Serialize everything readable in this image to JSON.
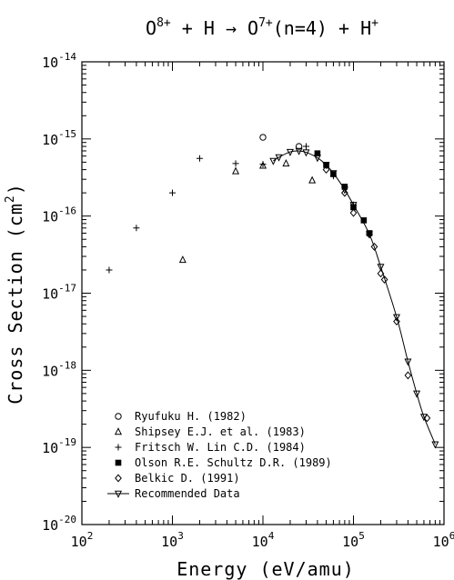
{
  "chart_data": {
    "type": "scatter",
    "title_parts": {
      "a": "O",
      "a_sup": "8+",
      "b": " + H → O",
      "b_sup": "7+",
      "c": "(n=4) + H",
      "c_sup": "+"
    },
    "xlabel": "Energy (eV/amu)",
    "ylabel_parts": {
      "main": "Cross Section (cm",
      "sup": "2",
      "end": ")"
    },
    "x_scale": "log",
    "y_scale": "log",
    "xlim": [
      100,
      1000000
    ],
    "ylim": [
      1e-20,
      1e-14
    ],
    "x_ticks": [
      {
        "value": 100,
        "base": "10",
        "exp": "2"
      },
      {
        "value": 1000,
        "base": "10",
        "exp": "3"
      },
      {
        "value": 10000,
        "base": "10",
        "exp": "4"
      },
      {
        "value": 100000,
        "base": "10",
        "exp": "5"
      },
      {
        "value": 1000000,
        "base": "10",
        "exp": "6"
      }
    ],
    "y_ticks": [
      {
        "value": 1e-20,
        "base": "10",
        "exp": "-20"
      },
      {
        "value": 1e-19,
        "base": "10",
        "exp": "-19"
      },
      {
        "value": 1e-18,
        "base": "10",
        "exp": "-18"
      },
      {
        "value": 1e-17,
        "base": "10",
        "exp": "-17"
      },
      {
        "value": 1e-16,
        "base": "10",
        "exp": "-16"
      },
      {
        "value": 1e-15,
        "base": "10",
        "exp": "-15"
      },
      {
        "value": 1e-14,
        "base": "10",
        "exp": "-14"
      }
    ],
    "legend_position": "lower-left",
    "series": [
      {
        "name": "Ryufuku H. (1982)",
        "marker": "circle",
        "points": [
          [
            10000,
            1.05e-15
          ],
          [
            25000,
            8e-16
          ]
        ]
      },
      {
        "name": "Shipsey E.J. et al. (1983)",
        "marker": "triangle",
        "points": [
          [
            1300,
            2.7e-17
          ],
          [
            5000,
            3.8e-16
          ],
          [
            10000,
            4.5e-16
          ],
          [
            18000,
            4.8e-16
          ],
          [
            35000,
            2.9e-16
          ]
        ]
      },
      {
        "name": "Fritsch W. Lin C.D. (1984)",
        "marker": "plus",
        "points": [
          [
            200,
            2e-17
          ],
          [
            400,
            7e-17
          ],
          [
            1000,
            2e-16
          ],
          [
            2000,
            5.6e-16
          ],
          [
            5000,
            4.8e-16
          ],
          [
            10000,
            4.7e-16
          ],
          [
            30000,
            8e-16
          ],
          [
            60000,
            3.3e-16
          ],
          [
            100000,
            1.4e-16
          ]
        ]
      },
      {
        "name": "Olson R.E. Schultz D.R. (1989)",
        "marker": "filled-square",
        "points": [
          [
            40000,
            6.5e-16
          ],
          [
            50000,
            4.6e-16
          ],
          [
            60000,
            3.5e-16
          ],
          [
            80000,
            2.4e-16
          ],
          [
            100000,
            1.3e-16
          ],
          [
            130000,
            8.8e-17
          ],
          [
            150000,
            6e-17
          ]
        ]
      },
      {
        "name": "Belkic D. (1991)",
        "marker": "diamond",
        "points": [
          [
            50000,
            4e-16
          ],
          [
            80000,
            2e-16
          ],
          [
            100000,
            1.1e-16
          ],
          [
            150000,
            5.8e-17
          ],
          [
            170000,
            4e-17
          ],
          [
            200000,
            1.8e-17
          ],
          [
            220000,
            1.5e-17
          ],
          [
            300000,
            4.3e-18
          ],
          [
            400000,
            8.6e-19
          ],
          [
            650000,
            2.4e-19
          ]
        ]
      },
      {
        "name": "Recommended Data",
        "marker": "triangle-down",
        "line": true,
        "points": [
          [
            13000,
            5.2e-16
          ],
          [
            15000,
            5.8e-16
          ],
          [
            20000,
            6.8e-16
          ],
          [
            25000,
            7e-16
          ],
          [
            30000,
            6.7e-16
          ],
          [
            40000,
            5.7e-16
          ],
          [
            50000,
            4.6e-16
          ],
          [
            60000,
            3.6e-16
          ],
          [
            80000,
            2.2e-16
          ],
          [
            100000,
            1.4e-16
          ],
          [
            150000,
            5.8e-17
          ],
          [
            200000,
            2.2e-17
          ],
          [
            300000,
            4.9e-18
          ],
          [
            400000,
            1.3e-18
          ],
          [
            500000,
            5e-19
          ],
          [
            600000,
            2.5e-19
          ],
          [
            800000,
            1.1e-19
          ]
        ]
      }
    ]
  }
}
